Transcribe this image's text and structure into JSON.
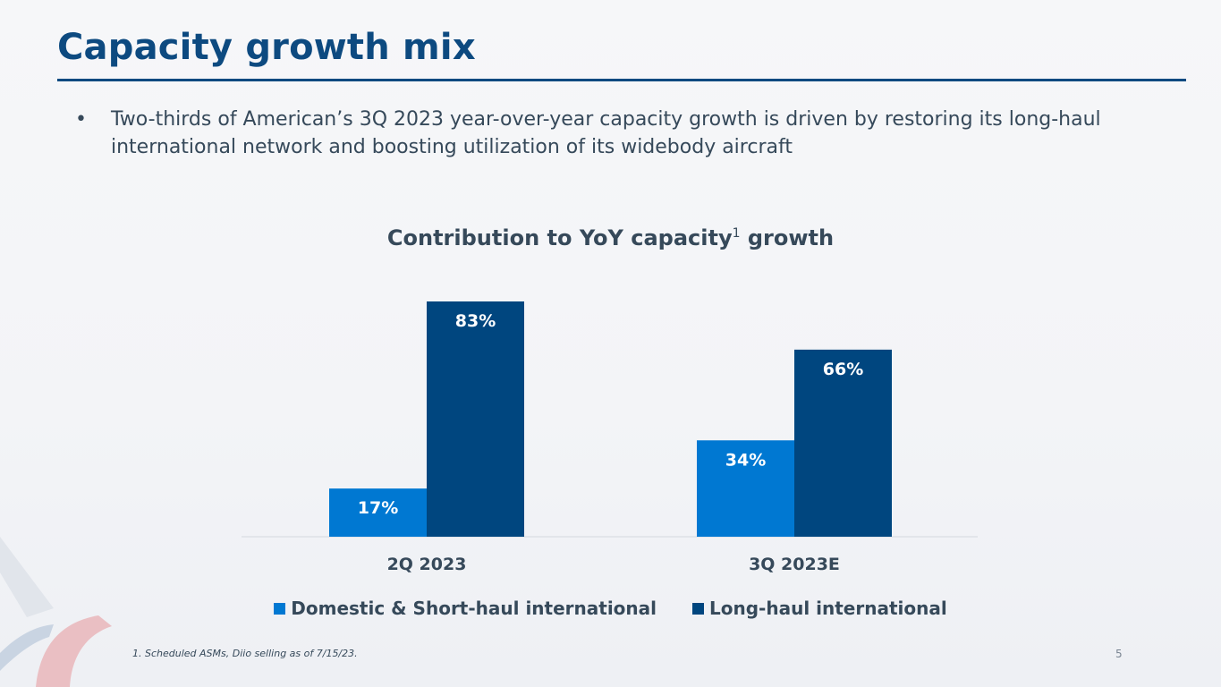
{
  "slide": {
    "title": "Capacity growth mix",
    "bullet_mark": "•",
    "bullet": "Two-thirds of American’s 3Q 2023 year-over-year capacity growth is driven by restoring its long-haul international network and boosting utilization of its widebody aircraft",
    "chart_title_main": "Contribution to YoY capacity",
    "chart_title_sup": "1",
    "chart_title_end": " growth",
    "footnote": "1. Scheduled ASMs, Diio selling as of 7/15/23.",
    "page_number": "5"
  },
  "colors": {
    "title": "#0d4a80",
    "domestic": "#0078d2",
    "longhaul": "#00467f",
    "text": "#36495a"
  },
  "chart_data": {
    "type": "bar",
    "title": "Contribution to YoY capacity1 growth",
    "categories": [
      "2Q 2023",
      "3Q 2023E"
    ],
    "series": [
      {
        "name": "Domestic & Short-haul international",
        "values": [
          17,
          34
        ],
        "labels": [
          "17%",
          "34%"
        ],
        "color": "#0078d2"
      },
      {
        "name": "Long-haul international",
        "values": [
          83,
          66
        ],
        "labels": [
          "83%",
          "66%"
        ],
        "color": "#00467f"
      }
    ],
    "ylim": [
      0,
      100
    ],
    "grid": false,
    "legend": "bottom"
  }
}
